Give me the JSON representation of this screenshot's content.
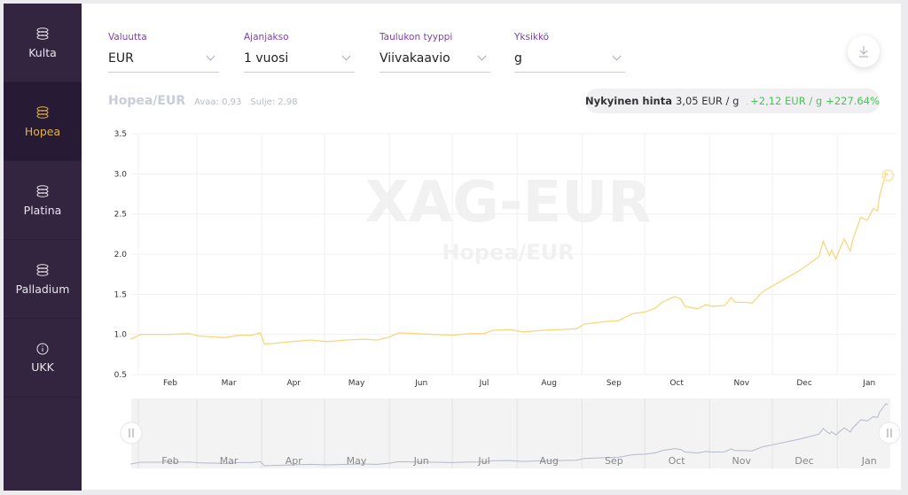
{
  "sidebar": {
    "items": [
      {
        "label": "Kulta",
        "icon": "coins-icon",
        "active": false
      },
      {
        "label": "Hopea",
        "icon": "coins-icon",
        "active": true
      },
      {
        "label": "Platina",
        "icon": "coins-icon",
        "active": false
      },
      {
        "label": "Palladium",
        "icon": "coins-icon",
        "active": false
      },
      {
        "label": "UKK",
        "icon": "info-icon",
        "active": false
      }
    ]
  },
  "filters": [
    {
      "label": "Valuutta",
      "value": "EUR"
    },
    {
      "label": "Ajanjakso",
      "value": "1 vuosi"
    },
    {
      "label": "Taulukon tyyppi",
      "value": "Viivakaavio"
    },
    {
      "label": "Yksikkö",
      "value": "g"
    }
  ],
  "download_icon": "download-icon",
  "header": {
    "pair": "Hopea/EUR",
    "open": "Avaa: 0,93",
    "close": "Sulje: 2,98"
  },
  "price": {
    "label": "Nykyinen hinta",
    "value": "3,05 EUR / g",
    "change": "+2,12 EUR / g",
    "percent": "+227.64%",
    "trend": "up"
  },
  "colors": {
    "sidebar": "#33243f",
    "active": "#e0b349",
    "line": "#f7d77e",
    "positive": "#4cc05c",
    "accent": "#7b3fb0"
  },
  "watermark": {
    "symbol": "XAG-EUR",
    "name": "Hopea/EUR"
  },
  "chart_data": {
    "type": "line",
    "ylim": [
      0.5,
      3.5
    ],
    "yticks": [
      "0.5",
      "1.0",
      "1.5",
      "2.0",
      "2.5",
      "3.0",
      "3.5"
    ],
    "xticks": [
      "Feb",
      "Mar",
      "Apr",
      "May",
      "Jun",
      "Jul",
      "Aug",
      "Sep",
      "Oct",
      "Nov",
      "Dec",
      "Jan"
    ],
    "grid": true,
    "points": [
      [
        "01-13",
        0.94
      ],
      [
        "01-18",
        1.0
      ],
      [
        "01-31",
        1.0
      ],
      [
        "02-10",
        1.01
      ],
      [
        "02-15",
        0.98
      ],
      [
        "02-21",
        0.97
      ],
      [
        "02-27",
        0.96
      ],
      [
        "03-06",
        0.99
      ],
      [
        "03-12",
        0.99
      ],
      [
        "03-16",
        1.02
      ],
      [
        "03-18",
        0.88
      ],
      [
        "03-23",
        0.89
      ],
      [
        "03-31",
        0.91
      ],
      [
        "04-09",
        0.93
      ],
      [
        "04-17",
        0.91
      ],
      [
        "04-26",
        0.93
      ],
      [
        "05-04",
        0.94
      ],
      [
        "05-11",
        0.93
      ],
      [
        "05-17",
        0.97
      ],
      [
        "05-21",
        1.02
      ],
      [
        "05-30",
        1.01
      ],
      [
        "06-07",
        1.0
      ],
      [
        "06-16",
        0.99
      ],
      [
        "06-24",
        1.01
      ],
      [
        "07-01",
        1.01
      ],
      [
        "07-05",
        1.05
      ],
      [
        "07-13",
        1.06
      ],
      [
        "07-20",
        1.03
      ],
      [
        "07-28",
        1.05
      ],
      [
        "08-06",
        1.06
      ],
      [
        "08-14",
        1.07
      ],
      [
        "08-18",
        1.13
      ],
      [
        "08-28",
        1.16
      ],
      [
        "09-03",
        1.17
      ],
      [
        "09-10",
        1.26
      ],
      [
        "09-16",
        1.28
      ],
      [
        "09-21",
        1.33
      ],
      [
        "09-24",
        1.4
      ],
      [
        "09-30",
        1.47
      ],
      [
        "10-03",
        1.44
      ],
      [
        "10-05",
        1.35
      ],
      [
        "10-11",
        1.32
      ],
      [
        "10-15",
        1.37
      ],
      [
        "10-18",
        1.35
      ],
      [
        "10-24",
        1.36
      ],
      [
        "10-27",
        1.46
      ],
      [
        "10-29",
        1.4
      ],
      [
        "11-03",
        1.4
      ],
      [
        "11-06",
        1.39
      ],
      [
        "11-11",
        1.53
      ],
      [
        "11-17",
        1.62
      ],
      [
        "11-25",
        1.74
      ],
      [
        "11-29",
        1.8
      ],
      [
        "12-08",
        1.97
      ],
      [
        "12-10",
        2.16
      ],
      [
        "12-13",
        1.98
      ],
      [
        "12-14",
        2.05
      ],
      [
        "12-16",
        1.94
      ],
      [
        "12-17",
        2.0
      ],
      [
        "12-20",
        2.19
      ],
      [
        "12-23",
        2.04
      ],
      [
        "12-24",
        2.17
      ],
      [
        "12-28",
        2.46
      ],
      [
        "12-31",
        2.42
      ],
      [
        "01-03",
        2.57
      ],
      [
        "01-05",
        2.54
      ],
      [
        "01-06",
        2.73
      ],
      [
        "01-09",
        3.01
      ],
      [
        "01-10",
        2.98
      ]
    ]
  }
}
